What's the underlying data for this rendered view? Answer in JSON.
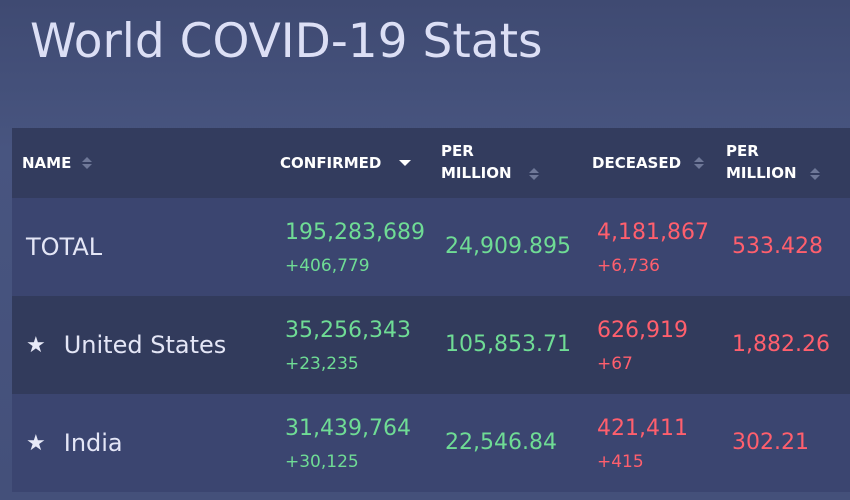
{
  "page": {
    "title": "World COVID-19 Stats"
  },
  "table": {
    "headers": {
      "name": "NAME",
      "confirmed": "CONFIRMED",
      "per_million_1_line1": "PER",
      "per_million_1_line2": "MILLION",
      "deceased": "DECEASED",
      "per_million_2_line1": "PER",
      "per_million_2_line2": "MILLION"
    },
    "sort": {
      "column": "confirmed",
      "direction": "descending"
    },
    "rows": [
      {
        "starred": false,
        "name": "TOTAL",
        "confirmed": "195,283,689",
        "confirmed_delta": "+406,779",
        "confirmed_per_million": "24,909.895",
        "deceased": "4,181,867",
        "deceased_delta": "+6,736",
        "deceased_per_million": "533.428"
      },
      {
        "starred": true,
        "star": "★",
        "name": "United States",
        "confirmed": "35,256,343",
        "confirmed_delta": "+23,235",
        "confirmed_per_million": "105,853.71",
        "deceased": "626,919",
        "deceased_delta": "+67",
        "deceased_per_million": "1,882.26"
      },
      {
        "starred": true,
        "star": "★",
        "name": "India",
        "confirmed": "31,439,764",
        "confirmed_delta": "+30,125",
        "confirmed_per_million": "22,546.84",
        "deceased": "421,411",
        "deceased_delta": "+415",
        "deceased_per_million": "302.21"
      }
    ]
  },
  "colors": {
    "positive": "#6fdc95",
    "negative": "#ff5f6d",
    "header_bg": "#333c5e"
  },
  "icons": {
    "star": "star-icon",
    "sort": "sort-icon",
    "sort_desc": "chevron-down-icon"
  }
}
